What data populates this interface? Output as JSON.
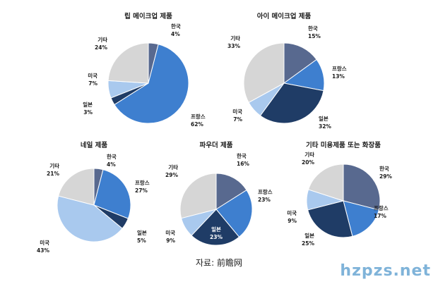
{
  "chart_data": [
    {
      "type": "pie",
      "title": "립 메이크업 제품",
      "slices": [
        {
          "label": "한국",
          "value": 4,
          "pct_text": "4%",
          "color": "#58698f"
        },
        {
          "label": "프랑스",
          "value": 62,
          "pct_text": "62%",
          "color": "#3e7fcf"
        },
        {
          "label": "일본",
          "value": 3,
          "pct_text": "3%",
          "color": "#1f3c66"
        },
        {
          "label": "미국",
          "value": 7,
          "pct_text": "7%",
          "color": "#a9c9ee"
        },
        {
          "label": "기타",
          "value": 24,
          "pct_text": "24%",
          "color": "#d6d6d6"
        }
      ]
    },
    {
      "type": "pie",
      "title": "아이 메이크업 제품",
      "slices": [
        {
          "label": "한국",
          "value": 15,
          "pct_text": "15%",
          "color": "#58698f"
        },
        {
          "label": "프랑스",
          "value": 13,
          "pct_text": "13%",
          "color": "#3e7fcf"
        },
        {
          "label": "일본",
          "value": 32,
          "pct_text": "32%",
          "color": "#1f3c66"
        },
        {
          "label": "미국",
          "value": 7,
          "pct_text": "7%",
          "color": "#a9c9ee"
        },
        {
          "label": "기타",
          "value": 33,
          "pct_text": "33%",
          "color": "#d6d6d6"
        }
      ]
    },
    {
      "type": "pie",
      "title": "네일 제품",
      "slices": [
        {
          "label": "한국",
          "value": 4,
          "pct_text": "4%",
          "color": "#58698f"
        },
        {
          "label": "프랑스",
          "value": 27,
          "pct_text": "27%",
          "color": "#3e7fcf"
        },
        {
          "label": "일본",
          "value": 5,
          "pct_text": "5%",
          "color": "#1f3c66"
        },
        {
          "label": "미국",
          "value": 43,
          "pct_text": "43%",
          "color": "#a9c9ee"
        },
        {
          "label": "기타",
          "value": 21,
          "pct_text": "21%",
          "color": "#d6d6d6"
        }
      ]
    },
    {
      "type": "pie",
      "title": "파우더 제품",
      "slices": [
        {
          "label": "한국",
          "value": 16,
          "pct_text": "16%",
          "color": "#58698f"
        },
        {
          "label": "프랑스",
          "value": 23,
          "pct_text": "23%",
          "color": "#3e7fcf"
        },
        {
          "label": "일본",
          "value": 23,
          "pct_text": "23%",
          "color": "#1f3c66"
        },
        {
          "label": "미국",
          "value": 9,
          "pct_text": "9%",
          "color": "#a9c9ee"
        },
        {
          "label": "기타",
          "value": 29,
          "pct_text": "29%",
          "color": "#d6d6d6"
        }
      ]
    },
    {
      "type": "pie",
      "title": "기타 미용제품 또는 화장품",
      "slices": [
        {
          "label": "한국",
          "value": 29,
          "pct_text": "29%",
          "color": "#58698f"
        },
        {
          "label": "프랑스",
          "value": 17,
          "pct_text": "17%",
          "color": "#3e7fcf"
        },
        {
          "label": "일본",
          "value": 25,
          "pct_text": "25%",
          "color": "#1f3c66"
        },
        {
          "label": "미국",
          "value": 9,
          "pct_text": "9%",
          "color": "#a9c9ee"
        },
        {
          "label": "기타",
          "value": 20,
          "pct_text": "20%",
          "color": "#d6d6d6"
        }
      ]
    }
  ],
  "source_text": "자료: 前瞻网",
  "watermark_text": "hzpzs.net"
}
